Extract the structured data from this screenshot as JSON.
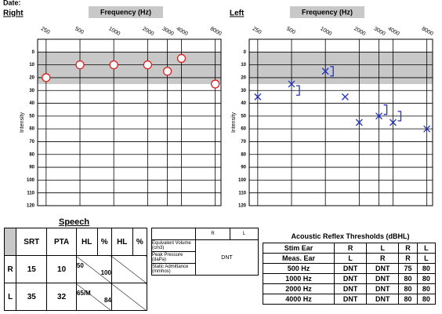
{
  "header": {
    "date_label": "Date:"
  },
  "chart_data": [
    {
      "type": "line",
      "title": "Right",
      "x_label": "Frequency (Hz)",
      "y_label": "Intensity",
      "log_x": true,
      "xlim": [
        210,
        9000
      ],
      "xticks": [
        250,
        500,
        1000,
        2000,
        3000,
        4000,
        8000
      ],
      "ylim": [
        -10,
        120
      ],
      "yticks": [
        0,
        10,
        20,
        30,
        40,
        50,
        60,
        70,
        80,
        90,
        100,
        110,
        120
      ],
      "y_inverted": true,
      "grid": true,
      "shade": [
        0,
        25
      ],
      "shade_color": "#c8c8c8",
      "x": [
        250,
        500,
        1000,
        2000,
        3000,
        4000,
        8000
      ],
      "series": [
        {
          "color": "#e02020",
          "marker": "circle",
          "line": true,
          "values": [
            20,
            10,
            10,
            10,
            15,
            5,
            25
          ]
        }
      ]
    },
    {
      "type": "line",
      "title": "Left",
      "x_label": "Frequency (Hz)",
      "y_label": "Intensity",
      "log_x": true,
      "xlim": [
        210,
        9000
      ],
      "xticks": [
        250,
        500,
        1000,
        2000,
        3000,
        4000,
        8000
      ],
      "ylim": [
        -10,
        120
      ],
      "yticks": [
        0,
        10,
        20,
        30,
        40,
        50,
        60,
        70,
        80,
        90,
        100,
        110,
        120
      ],
      "y_inverted": true,
      "grid": true,
      "shade": [
        0,
        25
      ],
      "shade_color": "#c8c8c8",
      "x": [
        250,
        500,
        1000,
        1500,
        2000,
        3000,
        4000,
        8000
      ],
      "series": [
        {
          "color": "#2030c8",
          "marker": "x",
          "line": true,
          "values": [
            35,
            25,
            15,
            35,
            55,
            50,
            55,
            60
          ]
        },
        {
          "color": "#2030c8",
          "marker": "bracket",
          "line": false,
          "values": [
            null,
            30,
            15,
            null,
            null,
            45,
            50,
            null
          ]
        }
      ]
    }
  ],
  "speech": {
    "title": "Speech",
    "headers": [
      "SRT",
      "PTA",
      "HL",
      "%",
      "HL",
      "%"
    ],
    "rows": [
      {
        "ear": "R",
        "srt": "15",
        "pta": "10",
        "hl": "50",
        "pct": "100"
      },
      {
        "ear": "L",
        "srt": "35",
        "pta": "32",
        "hl": "65/M",
        "pct": "84"
      }
    ]
  },
  "tympanometry": {
    "headers": [
      "R",
      "L"
    ],
    "labels": [
      "Equivalent Volume (cm3)",
      "Peak Pressure (daPa)",
      "Static Admittance (mmhos)"
    ],
    "value": "DNT"
  },
  "reflex": {
    "title": "Acoustic Reflex Thresholds (dBHL)",
    "header_rows": [
      [
        "Stim Ear",
        "R",
        "L",
        "R",
        "L"
      ],
      [
        "Meas. Ear",
        "L",
        "R",
        "R",
        "L"
      ]
    ],
    "rows": [
      [
        "500 Hz",
        "DNT",
        "DNT",
        "75",
        "80"
      ],
      [
        "1000 Hz",
        "DNT",
        "DNT",
        "80",
        "80"
      ],
      [
        "2000 Hz",
        "DNT",
        "DNT",
        "80",
        "80"
      ],
      [
        "4000 Hz",
        "DNT",
        "DNT",
        "80",
        "80"
      ]
    ]
  }
}
